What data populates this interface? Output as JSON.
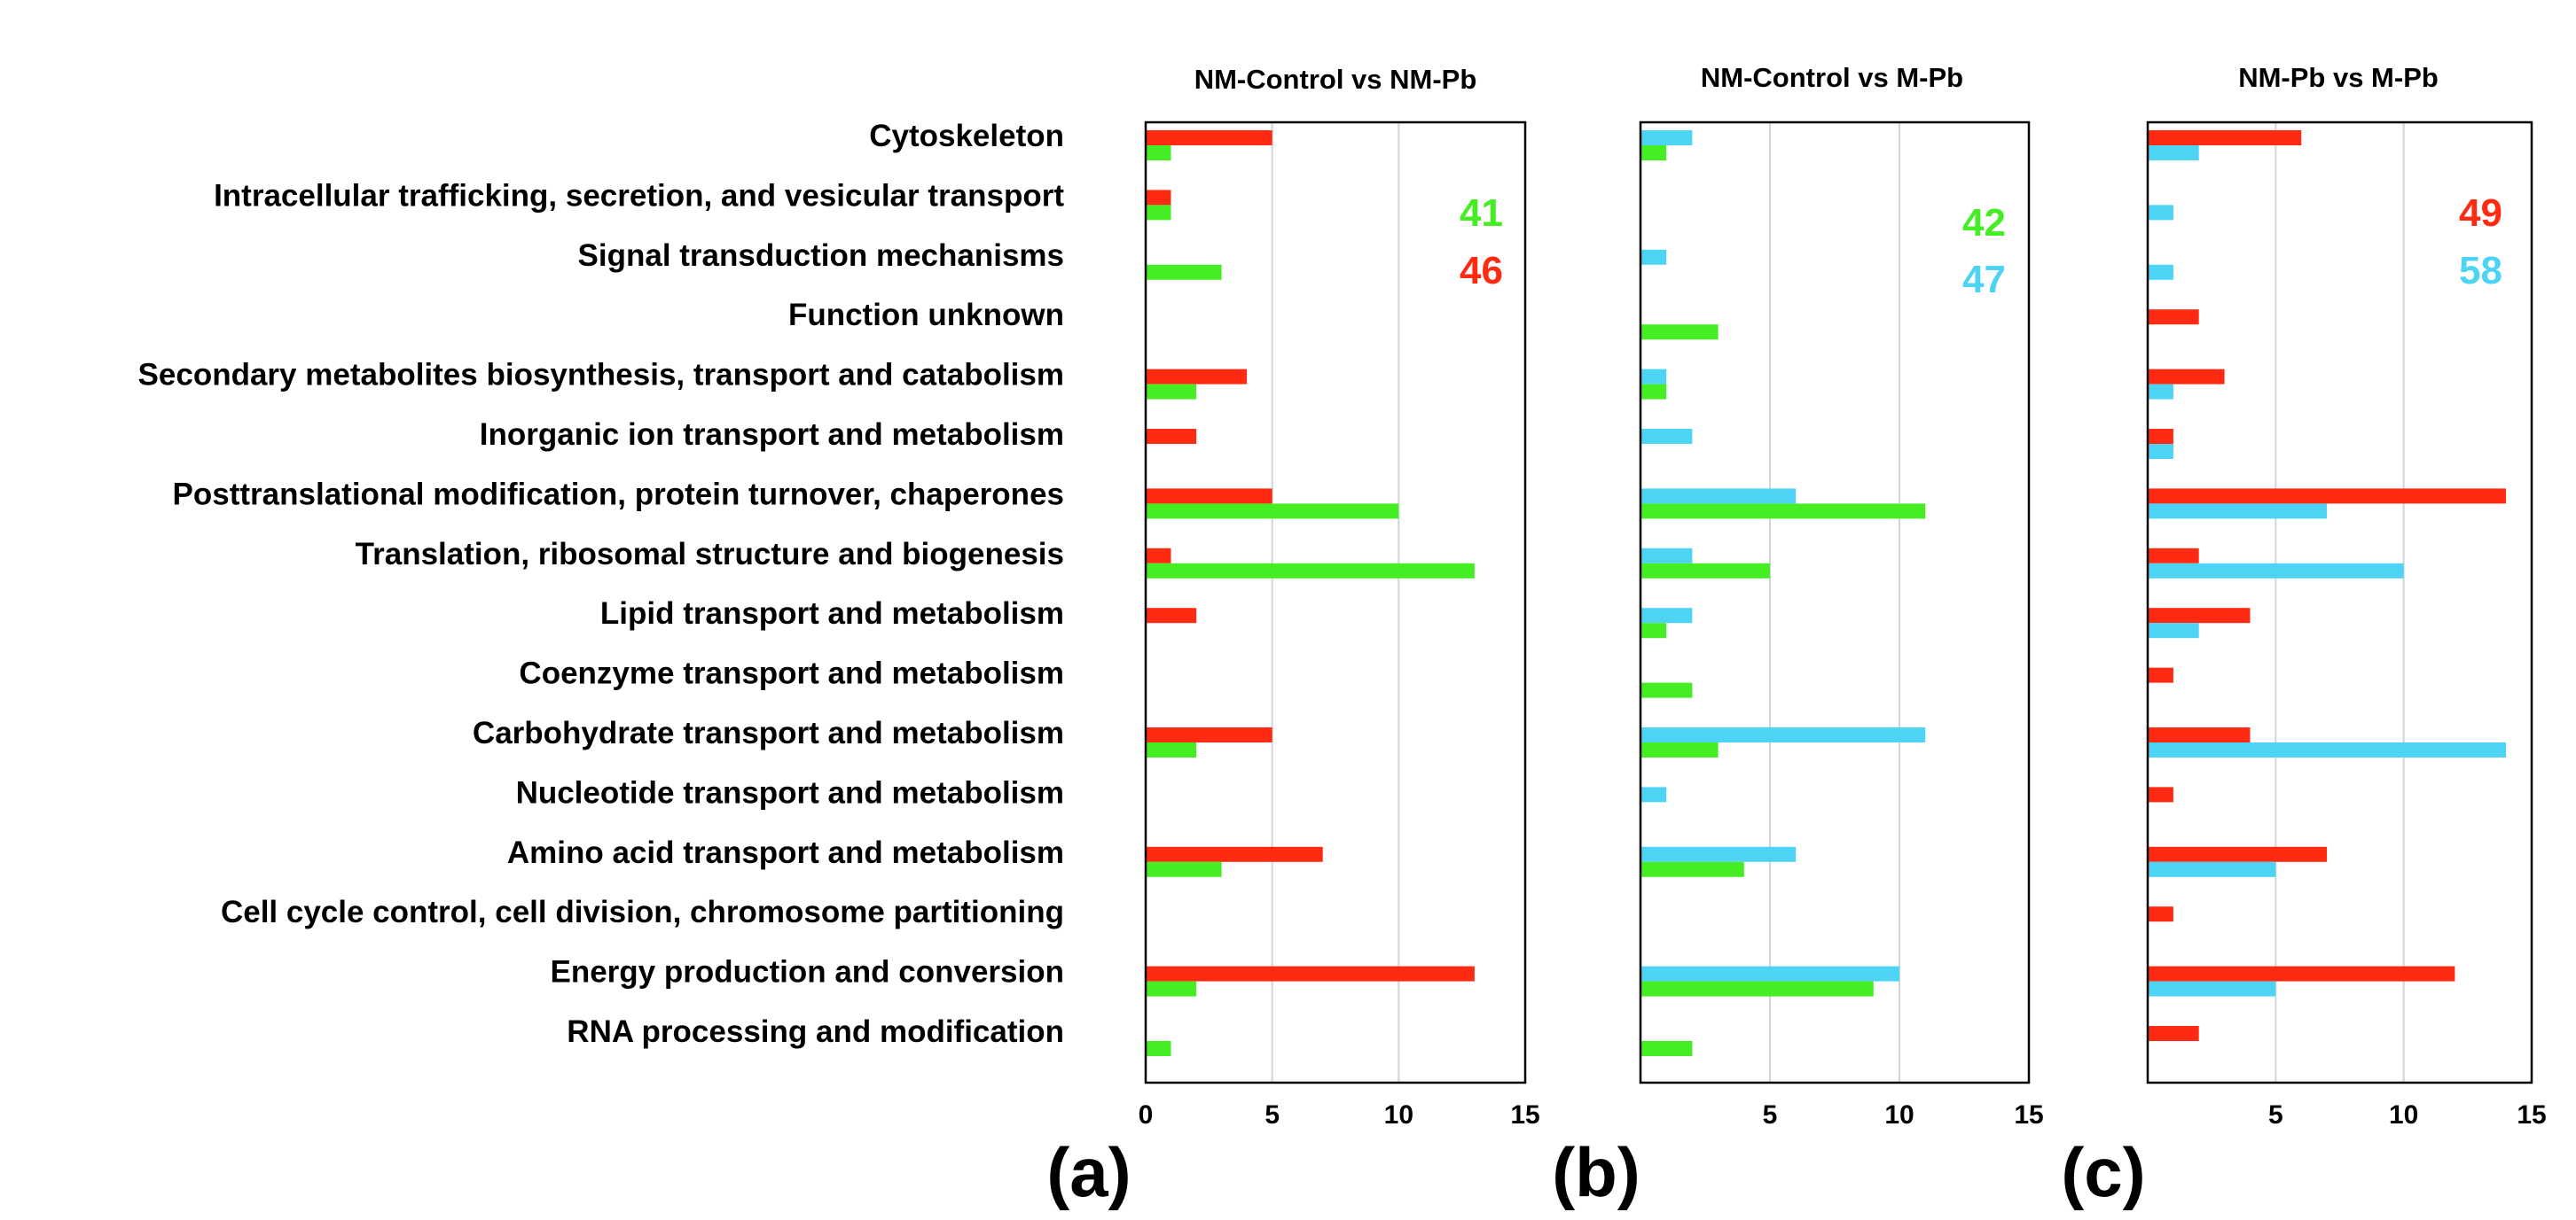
{
  "chart_data": {
    "type": "bar",
    "orientation": "horizontal",
    "categories": [
      "Cytoskeleton",
      "Intracellular trafficking, secretion, and vesicular transport",
      "Signal transduction mechanisms",
      "Function unknown",
      "Secondary metabolites biosynthesis, transport and catabolism",
      "Inorganic ion transport and metabolism",
      "Posttranslational modification, protein turnover, chaperones",
      "Translation, ribosomal structure and biogenesis",
      "Lipid transport and metabolism",
      "Coenzyme transport and metabolism",
      "Carbohydrate transport and metabolism",
      "Nucleotide transport and metabolism",
      "Amino acid transport and metabolism",
      "Cell cycle control, cell division, chromosome partitioning",
      "Energy production and conversion",
      "RNA processing and modification"
    ],
    "panels": [
      {
        "letter": "(a)",
        "title": "NM-Control vs NM-Pb",
        "xlim": [
          0,
          15
        ],
        "xticks": [
          "0",
          "5",
          "10",
          "15"
        ],
        "grid": true,
        "series": [
          {
            "name": "red",
            "color": "#ff2a12",
            "values": [
              5,
              1,
              0,
              0,
              4,
              2,
              5,
              1,
              2,
              0,
              5,
              0,
              7,
              0,
              13,
              0
            ]
          },
          {
            "name": "green",
            "color": "#44ee22",
            "values": [
              1,
              1,
              3,
              0,
              2,
              0,
              10,
              13,
              0,
              0,
              2,
              0,
              3,
              0,
              2,
              1
            ]
          }
        ],
        "annotations": [
          {
            "text": "41",
            "color": "#44ee22"
          },
          {
            "text": "46",
            "color": "#ff2a12"
          }
        ]
      },
      {
        "letter": "(b)",
        "title": "NM-Control vs M-Pb",
        "xlim": [
          0,
          15
        ],
        "xticks": [
          "5",
          "10",
          "15"
        ],
        "grid": true,
        "series": [
          {
            "name": "cyan",
            "color": "#4dd4f5",
            "values": [
              2,
              0,
              1,
              0,
              1,
              2,
              6,
              2,
              2,
              0,
              11,
              1,
              6,
              0,
              10,
              0
            ]
          },
          {
            "name": "green",
            "color": "#44ee22",
            "values": [
              1,
              0,
              0,
              3,
              1,
              0,
              11,
              5,
              1,
              2,
              3,
              0,
              4,
              0,
              9,
              2
            ]
          }
        ],
        "annotations": [
          {
            "text": "42",
            "color": "#44ee22"
          },
          {
            "text": "47",
            "color": "#4dd4f5"
          }
        ]
      },
      {
        "letter": "(c)",
        "title": "NM-Pb vs M-Pb",
        "xlim": [
          0,
          15
        ],
        "xticks": [
          "5",
          "10",
          "15"
        ],
        "grid": true,
        "series": [
          {
            "name": "red",
            "color": "#ff2a12",
            "values": [
              6,
              0,
              0,
              2,
              3,
              1,
              14,
              2,
              4,
              1,
              4,
              1,
              7,
              1,
              12,
              2
            ]
          },
          {
            "name": "cyan",
            "color": "#4dd4f5",
            "values": [
              2,
              1,
              1,
              0,
              1,
              1,
              7,
              10,
              2,
              0,
              14,
              0,
              5,
              0,
              5,
              0
            ]
          }
        ],
        "annotations": [
          {
            "text": "49",
            "color": "#ff2a12"
          },
          {
            "text": "58",
            "color": "#4dd4f5"
          }
        ]
      }
    ]
  }
}
